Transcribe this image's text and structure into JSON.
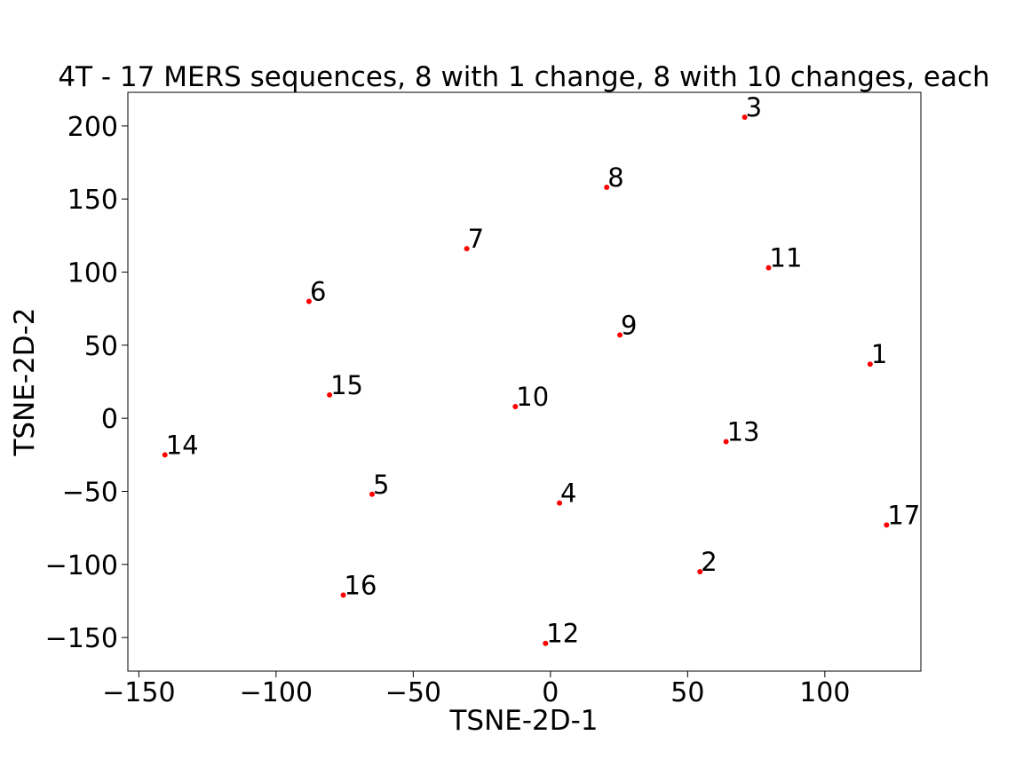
{
  "chart_data": {
    "type": "scatter",
    "title": "4T - 17 MERS sequences, 8 with 1 change, 8 with 10 changes, each",
    "xlabel": "TSNE-2D-1",
    "ylabel": "TSNE-2D-2",
    "xlim": [
      -154,
      135
    ],
    "ylim": [
      -173,
      223
    ],
    "xticks": [
      -150,
      -100,
      -50,
      0,
      50,
      100
    ],
    "xtick_labels": [
      "−150",
      "−100",
      "−50",
      "0",
      "50",
      "100"
    ],
    "yticks": [
      -150,
      -100,
      -50,
      0,
      50,
      100,
      150,
      200
    ],
    "ytick_labels": [
      "−150",
      "−100",
      "−50",
      "0",
      "50",
      "100",
      "150",
      "200"
    ],
    "grid": false,
    "marker_color": "#ff0000",
    "points": [
      {
        "label": "1",
        "x": 116.5,
        "y": 37
      },
      {
        "label": "2",
        "x": 54.5,
        "y": -105
      },
      {
        "label": "3",
        "x": 70.8,
        "y": 206
      },
      {
        "label": "4",
        "x": 3.3,
        "y": -58
      },
      {
        "label": "5",
        "x": -65,
        "y": -52
      },
      {
        "label": "6",
        "x": -88,
        "y": 80
      },
      {
        "label": "7",
        "x": -30.5,
        "y": 116
      },
      {
        "label": "8",
        "x": 20.5,
        "y": 158
      },
      {
        "label": "9",
        "x": 25.3,
        "y": 57
      },
      {
        "label": "10",
        "x": -12.8,
        "y": 8
      },
      {
        "label": "11",
        "x": 79.5,
        "y": 103
      },
      {
        "label": "12",
        "x": -1.8,
        "y": -154
      },
      {
        "label": "13",
        "x": 64,
        "y": -16
      },
      {
        "label": "14",
        "x": -140.5,
        "y": -25
      },
      {
        "label": "15",
        "x": -80.5,
        "y": 16
      },
      {
        "label": "16",
        "x": -75.5,
        "y": -121
      },
      {
        "label": "17",
        "x": 122.5,
        "y": -73
      }
    ]
  }
}
